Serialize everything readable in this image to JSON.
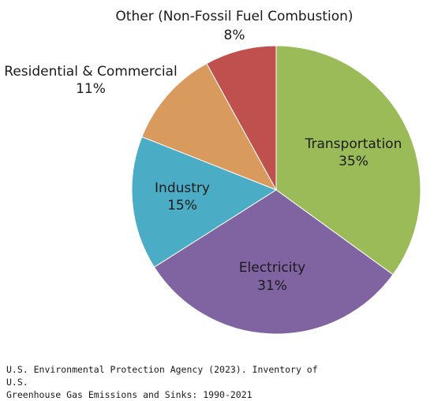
{
  "chart_data": {
    "type": "pie",
    "slices": [
      {
        "label": "Transportation",
        "value": 35,
        "value_label": "35%",
        "color": "#9BBB59"
      },
      {
        "label": "Electricity",
        "value": 31,
        "value_label": "31%",
        "color": "#8064A2"
      },
      {
        "label": "Industry",
        "value": 15,
        "value_label": "15%",
        "color": "#4BACC6"
      },
      {
        "label": "Residential & Commercial",
        "value": 11,
        "value_label": "11%",
        "color": "#D99A5E"
      },
      {
        "label": "Other (Non-Fossil Fuel Combustion)",
        "value": 8,
        "value_label": "8%",
        "color": "#C0504D"
      }
    ],
    "start_angle_deg": 0,
    "direction": "clockwise",
    "legend": "none"
  },
  "source": {
    "line1": "U.S. Environmental Protection Agency (2023). Inventory of U.S.",
    "line2": "Greenhouse Gas Emissions and Sinks: 1990-2021"
  }
}
